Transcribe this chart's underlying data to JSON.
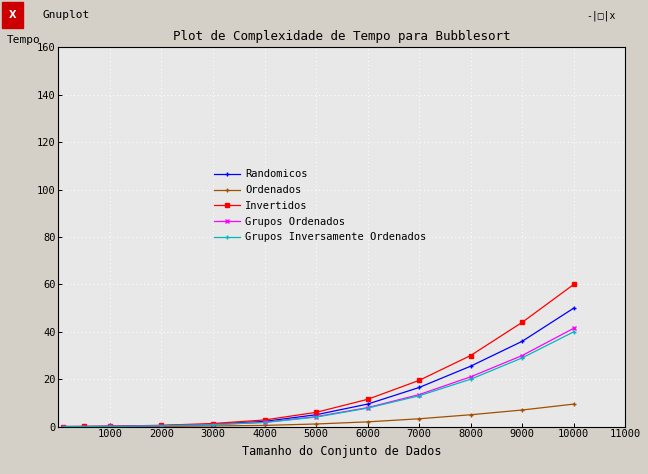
{
  "title": "Plot de Complexidade de Tempo para Bubblesort",
  "ylabel": "Tempo",
  "xlabel": "Tamanho do Conjunto de Dados",
  "xlim": [
    0,
    11000
  ],
  "ylim": [
    0,
    160
  ],
  "xticks": [
    1000,
    2000,
    3000,
    4000,
    5000,
    6000,
    7000,
    8000,
    9000,
    10000,
    11000
  ],
  "yticks": [
    0,
    20,
    40,
    60,
    80,
    100,
    120,
    140,
    160
  ],
  "plot_bg_color": "#e8e8e8",
  "outer_bg_color": "#d4d0c8",
  "grid_color": "#ffffff",
  "series": [
    {
      "name": "Randomicos",
      "color": "#0000ff",
      "marker": "+",
      "x": [
        100,
        500,
        1000,
        2000,
        3000,
        4000,
        5000,
        6000,
        7000,
        8000,
        9000,
        10000
      ],
      "y": [
        0.01,
        0.03,
        0.1,
        0.4,
        1.0,
        2.2,
        5.0,
        9.5,
        16.5,
        25.5,
        36.0,
        50.0
      ]
    },
    {
      "name": "Ordenados",
      "color": "#a05000",
      "marker": "+",
      "x": [
        100,
        500,
        1000,
        2000,
        3000,
        4000,
        5000,
        6000,
        7000,
        8000,
        9000,
        10000
      ],
      "y": [
        0.0,
        0.01,
        0.03,
        0.12,
        0.27,
        0.5,
        1.1,
        2.0,
        3.3,
        5.0,
        7.0,
        9.5
      ]
    },
    {
      "name": "Invertidos",
      "color": "#ff0000",
      "marker": "s",
      "x": [
        100,
        500,
        1000,
        2000,
        3000,
        4000,
        5000,
        6000,
        7000,
        8000,
        9000,
        10000
      ],
      "y": [
        0.01,
        0.05,
        0.15,
        0.55,
        1.3,
        2.8,
        6.0,
        11.5,
        19.5,
        30.0,
        44.0,
        60.0
      ]
    },
    {
      "name": "Grupos Ordenados",
      "color": "#ff00ff",
      "marker": "x",
      "x": [
        100,
        500,
        1000,
        2000,
        3000,
        4000,
        5000,
        6000,
        7000,
        8000,
        9000,
        10000
      ],
      "y": [
        0.01,
        0.03,
        0.08,
        0.35,
        0.85,
        1.8,
        4.2,
        8.0,
        13.5,
        21.0,
        30.0,
        41.5
      ]
    },
    {
      "name": "Grupos Inversamente Ordenados",
      "color": "#00bbbb",
      "marker": "+",
      "x": [
        100,
        500,
        1000,
        2000,
        3000,
        4000,
        5000,
        6000,
        7000,
        8000,
        9000,
        10000
      ],
      "y": [
        0.01,
        0.03,
        0.08,
        0.33,
        0.82,
        1.75,
        4.0,
        7.8,
        13.0,
        20.0,
        29.0,
        40.0
      ]
    }
  ],
  "window_bg": "#d4d0c8",
  "titlebar_bg": "#ece9d8",
  "titlebar_text_color": "#000000",
  "x_icon_bg": "#cc0000",
  "x_icon_fg": "#ffffff"
}
